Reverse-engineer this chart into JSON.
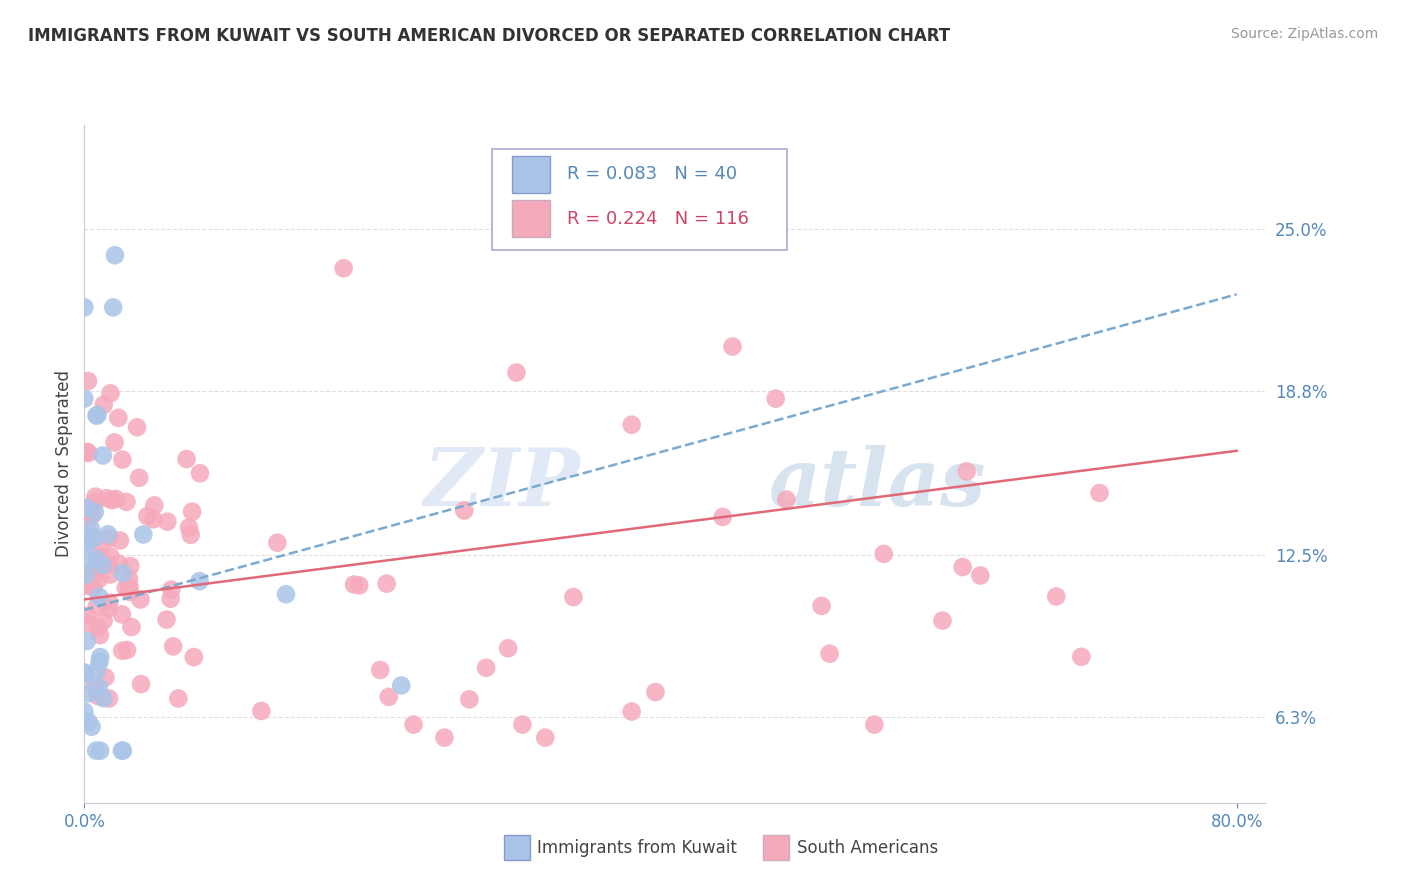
{
  "title": "IMMIGRANTS FROM KUWAIT VS SOUTH AMERICAN DIVORCED OR SEPARATED CORRELATION CHART",
  "source": "Source: ZipAtlas.com",
  "ylabel": "Divorced or Separated",
  "y_ticks": [
    0.063,
    0.125,
    0.188,
    0.25
  ],
  "y_tick_labels": [
    "6.3%",
    "12.5%",
    "18.8%",
    "25.0%"
  ],
  "xlim": [
    0.0,
    0.82
  ],
  "ylim": [
    0.03,
    0.29
  ],
  "kuwait_R": 0.083,
  "kuwait_N": 40,
  "south_R": 0.224,
  "south_N": 116,
  "kuwait_color": "#aac4e8",
  "south_color": "#f5aabb",
  "kuwait_line_color": "#7aaad0",
  "south_line_color": "#e06878",
  "legend_kuwait": "Immigrants from Kuwait",
  "legend_south": "South Americans",
  "watermark_zip": "ZIP",
  "watermark_atlas": "atlas",
  "background_color": "#ffffff",
  "grid_color": "#e0e0e0",
  "title_color": "#333333",
  "axis_color": "#5588bb",
  "tick_label_color": "#5588bb"
}
